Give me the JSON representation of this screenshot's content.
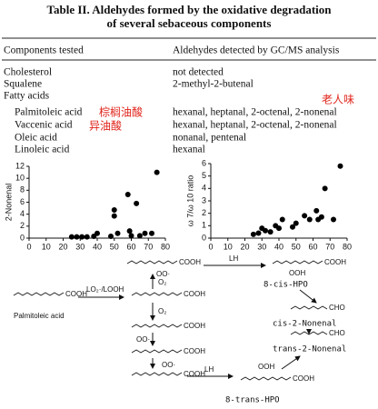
{
  "title_lines": [
    "Table II. Aldehydes formed by the oxidative degradation",
    "of several sebaceous components"
  ],
  "table": {
    "headers": [
      "Components tested",
      "Aldehydes detected by GC/MS analysis"
    ],
    "rows": [
      [
        "Cholesterol",
        "not detected"
      ],
      [
        "Squalene",
        "2-methyl-2-butenal"
      ],
      [
        "Fatty acids"
      ],
      [
        "Palmitoleic acid",
        "hexanal, heptanal, 2-octenal, 2-nonenal"
      ],
      [
        "Vaccenic acid",
        "hexanal, heptanal, 2-octenal, 2-nonenal"
      ],
      [
        "Oleic acid",
        "nonanal, pentenal"
      ],
      [
        "Linoleic acid",
        "hexanal"
      ]
    ]
  },
  "annotations": [
    "棕榈油酸",
    "异油酸",
    "老人味"
  ],
  "chart_data": [
    {
      "type": "scatter",
      "y_label": "2-Nonenal",
      "color": "#000000",
      "x": [
        25,
        28,
        31,
        34,
        38,
        40,
        48,
        50,
        50,
        52,
        58,
        59,
        60,
        63,
        65,
        68,
        72,
        75
      ],
      "values": [
        0.2,
        0.2,
        0.2,
        0.2,
        0.3,
        0.8,
        0.3,
        4.7,
        3.7,
        0.8,
        7.3,
        1.2,
        0.4,
        5.8,
        0.4,
        0.8,
        0.8,
        11
      ],
      "xlim": [
        0,
        80
      ],
      "xticks": [
        0,
        10,
        20,
        30,
        40,
        50,
        60,
        70,
        80
      ],
      "ylim": [
        0,
        12
      ],
      "yticks": [
        0,
        2,
        4,
        6,
        8,
        10,
        12
      ]
    },
    {
      "type": "scatter",
      "y_label": "ω 7/ω 10 ratio",
      "color": "#000000",
      "x": [
        25,
        28,
        30,
        32,
        35,
        38,
        40,
        42,
        48,
        50,
        55,
        58,
        62,
        63,
        65,
        67,
        72,
        76
      ],
      "values": [
        0.3,
        0.4,
        0.8,
        0.6,
        0.5,
        1.0,
        0.8,
        1.5,
        0.9,
        1.2,
        1.8,
        1.5,
        2.2,
        1.5,
        1.7,
        4.0,
        1.5,
        5.8
      ],
      "xlim": [
        0,
        80
      ],
      "xticks": [
        0,
        10,
        20,
        30,
        40,
        50,
        60,
        70,
        80
      ],
      "ylim": [
        0,
        6
      ],
      "yticks": [
        0,
        1,
        2,
        3,
        4,
        5,
        6
      ]
    }
  ],
  "diagram": {
    "substrate": "Palmitoleic acid",
    "initiator": "LO₂·/LOOH",
    "oxygen": "O₂",
    "abstraction": "LH",
    "products": [
      "8-cis-HPO",
      "cis-2-Nonenal",
      "trans-2-Nonenal",
      "8-trans-HPO"
    ],
    "groups": [
      "COOH",
      "CHO",
      "OOH",
      "OO·"
    ]
  }
}
